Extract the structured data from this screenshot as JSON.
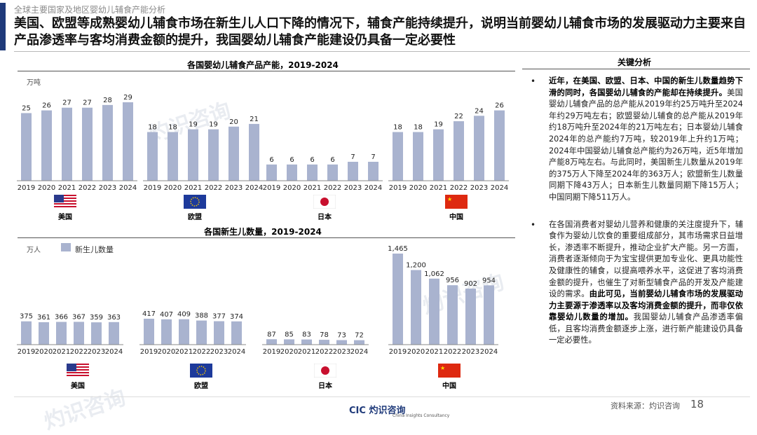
{
  "header": {
    "section": "全球主要国家及地区婴幼儿辅食产能分析",
    "headline": "美国、欧盟等成熟婴幼儿辅食市场在新生儿人口下降的情况下，辅食产能持续提升，说明当前婴幼儿辅食市场的发展驱动力主要来自产品渗透率与客均消费金额的提升，我国婴幼儿辅食产能建设仍具备一定必要性"
  },
  "chart_data": [
    {
      "type": "bar",
      "title": "各国婴幼儿辅食产品产能，2019-2024",
      "unit": "万吨",
      "categories": [
        "2019",
        "2020",
        "2021",
        "2022",
        "2023",
        "2024"
      ],
      "series": [
        {
          "name": "美国",
          "values": [
            25,
            26,
            27,
            27,
            28,
            29
          ]
        },
        {
          "name": "欧盟",
          "values": [
            18,
            18,
            19,
            19,
            20,
            21
          ]
        },
        {
          "name": "日本",
          "values": [
            6,
            6,
            6,
            6,
            7,
            7
          ]
        },
        {
          "name": "中国",
          "values": [
            18,
            18,
            19,
            22,
            24,
            26
          ]
        }
      ],
      "color": "#a9b3cf"
    },
    {
      "type": "bar",
      "title": "各国新生儿数量，2019-2024",
      "unit": "万人",
      "legend": "新生儿数量",
      "categories": [
        "2019",
        "2020",
        "2021",
        "2022",
        "2023",
        "2024"
      ],
      "series": [
        {
          "name": "美国",
          "values": [
            "375",
            "361",
            "366",
            "367",
            "359",
            "363"
          ]
        },
        {
          "name": "欧盟",
          "values": [
            "417",
            "407",
            "409",
            "388",
            "377",
            "374"
          ]
        },
        {
          "name": "日本",
          "values": [
            "87",
            "85",
            "83",
            "78",
            "73",
            "72"
          ]
        },
        {
          "name": "中国",
          "values": [
            "1,465",
            "1,200",
            "1,062",
            "956",
            "902",
            "954"
          ]
        }
      ],
      "color": "#a9b3cf"
    }
  ],
  "countries": [
    "美国",
    "欧盟",
    "日本",
    "中国"
  ],
  "analysis": {
    "title": "关键分析",
    "p1_bold": "近年，在美国、欧盟、日本、中国的新生儿数量趋势下滑的同时，各国婴幼儿辅食的产能却在持续提升。",
    "p1_text": "美国婴幼儿辅食产品的总产能从2019年约25万吨升至2024年约29万吨左右；欧盟婴幼儿辅食的总产能从2019年约18万吨升至2024年的21万吨左右；日本婴幼儿辅食2024年的总产能约7万吨，较2019年上升约1万吨；2024年中国婴幼儿辅食总产能约为26万吨，近5年增加产能8万吨左右。与此同时，美国新生儿数量从2019年的375万人下降至2024年的363万人；欧盟新生儿数量同期下降43万人；日本新生儿数量同期下降15万人；中国同期下降511万人。",
    "p2_text": "在各国消费者对婴幼儿营养和健康的关注度提升下，辅食作为婴幼儿饮食的重要组成部分，其市场需求日益增长，渗透率不断提升，推动企业扩大产能。另一方面，消费者逐渐倾向于为宝宝提供更加专业化、更具功能性及健康性的辅食，以提高喂养水平，这促进了客均消费金额的提升，也催生了对新型辅食产品的开发及产能建设的需求。",
    "p2_bold": "由此可见，当前婴幼儿辅食市场的发展驱动力主要源于渗透率以及客均消费金额的提升，而非仅依靠婴幼儿数量的增加。",
    "p2_tail": "我国婴幼儿辅食产品渗透率偏低，且客均消费金额逐步上涨，进行新产能建设仍具备一定必要性。"
  },
  "footer": {
    "source": "资料来源：灼识咨询",
    "page": "18",
    "logo_main": "CIC 灼识咨询",
    "logo_sub": "China Insights Consultancy"
  },
  "watermark": {
    "cn": "灼识咨询",
    "en": "China Insights Consultancy"
  }
}
